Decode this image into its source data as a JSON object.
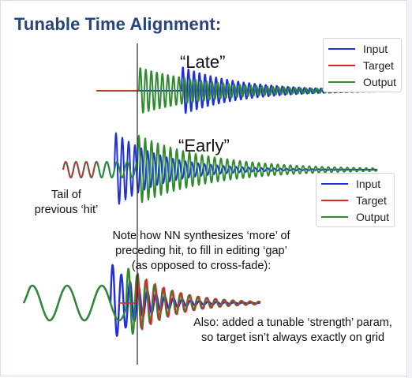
{
  "slide": {
    "title": "Tunable Time Alignment:",
    "label_late": "“Late”",
    "label_early": "“Early”",
    "label_tail": "Tail of\nprevious ‘hit’",
    "note_nn": "Note how NN synthesizes ‘more’ of\npreceding hit, to fill in editing ‘gap’\n(as opposed to cross-fade):",
    "note_strength": "Also: added a tunable ‘strength’ param,\nso target isn’t always exactly on grid"
  },
  "legend_top": [
    {
      "label": "Input",
      "color": "#1f2fe0"
    },
    {
      "label": "Target",
      "color": "#e0242a"
    },
    {
      "label": "Output",
      "color": "#2e8b2e"
    }
  ],
  "legend_mid": [
    {
      "label": "Input",
      "color": "#1f2fe0"
    },
    {
      "label": "Target",
      "color": "#e0242a"
    },
    {
      "label": "Output",
      "color": "#2e8b2e"
    }
  ],
  "colors": {
    "input": "#1f2fe0",
    "target": "#e0242a",
    "output": "#2e8b2e",
    "title": "#27457a",
    "gridline": "#222222"
  }
}
